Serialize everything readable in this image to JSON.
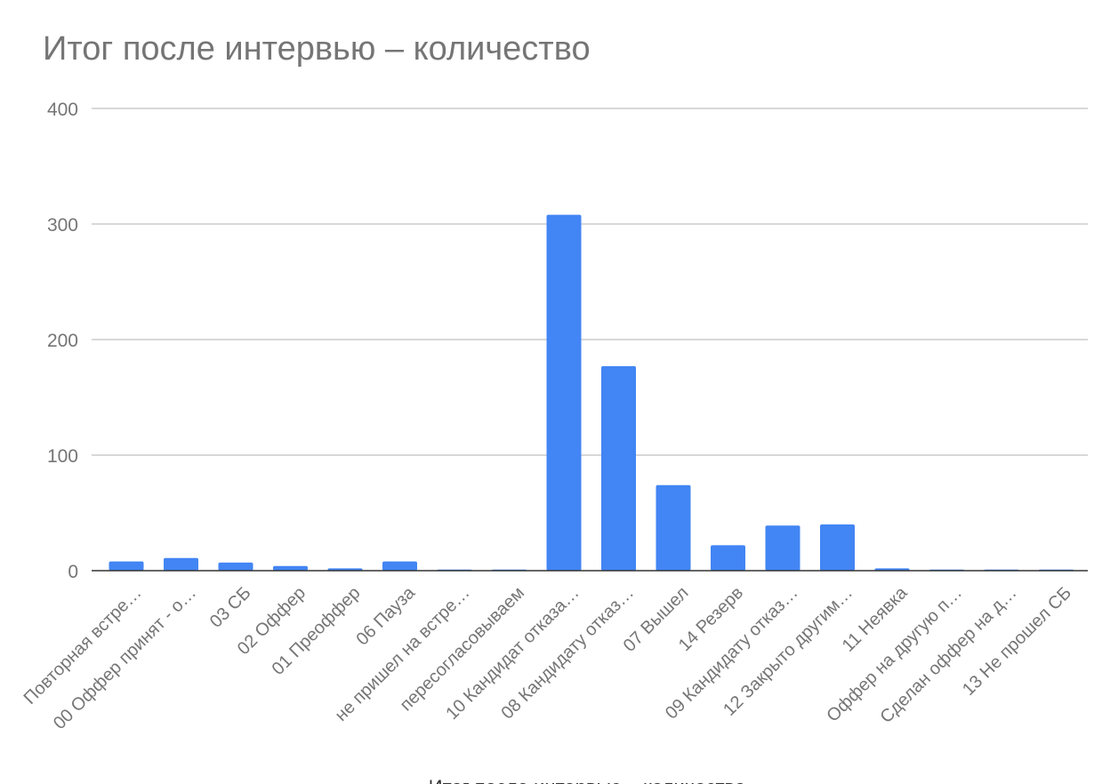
{
  "chart_data": {
    "type": "bar",
    "title": "Итог после интервью – количество",
    "xlabel": "Итог после интервью – количество",
    "ylabel": "",
    "ylim": [
      0,
      400
    ],
    "yticks": [
      "400",
      "300",
      "200",
      "100",
      "0"
    ],
    "grid": true,
    "legend": "none",
    "categories": [
      "Повторная встре…",
      "00 Оффер принят - о…",
      "03 СБ",
      "02 Оффер",
      "01 Преоффер",
      "06 Пауза",
      "не пришел на встре…",
      "пересогласовываем",
      "10 Кандидат отказа…",
      "08 Кандидату отказ…",
      "07 Вышел",
      "14 Резерв",
      "09 Кандидату отказ…",
      "12 Закрыто другим…",
      "11 Неявка",
      "Оффер на другую п…",
      "Сделан оффер на д…",
      "13 Не прошел СБ"
    ],
    "values": [
      8,
      11,
      7,
      4,
      2,
      8,
      1,
      1,
      308,
      177,
      74,
      22,
      39,
      40,
      2,
      1,
      1,
      1
    ],
    "bar_color": "#4285f4",
    "grid_color": "#cccccc",
    "axis_color": "#333333"
  }
}
